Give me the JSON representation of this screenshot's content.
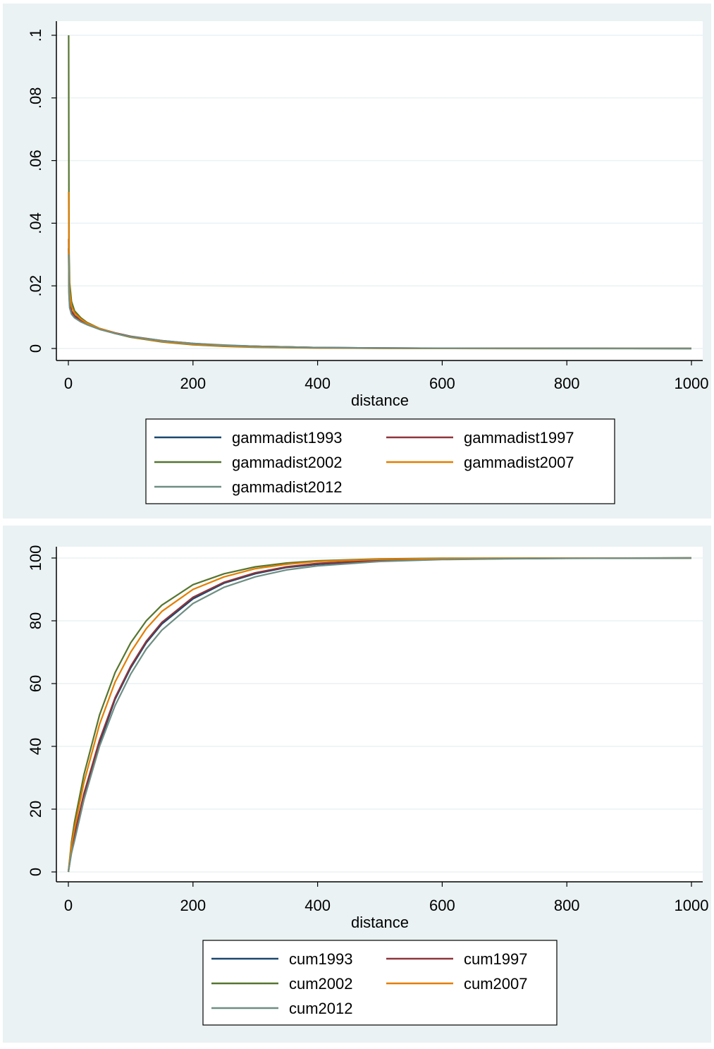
{
  "chart_data": [
    {
      "type": "line",
      "xlabel": "distance",
      "ylabel": "",
      "xlim": [
        0,
        1000
      ],
      "ylim": [
        0,
        0.1
      ],
      "xticks": [
        0,
        200,
        400,
        600,
        800,
        1000
      ],
      "xtick_labels": [
        "0",
        "200",
        "400",
        "600",
        "800",
        "1000"
      ],
      "yticks": [
        0,
        0.02,
        0.04,
        0.06,
        0.08,
        0.1
      ],
      "ytick_labels": [
        "0",
        ".02",
        ".04",
        ".06",
        ".08",
        ".1"
      ],
      "grid": "horizontal",
      "legend_position": "bottom",
      "x": [
        0.5,
        1,
        2,
        5,
        10,
        20,
        30,
        50,
        75,
        100,
        150,
        200,
        250,
        300,
        400,
        500,
        600,
        800,
        1000
      ],
      "series": [
        {
          "name": "gammadist1993",
          "color": "#1a476f",
          "values": [
            0.032,
            0.018,
            0.014,
            0.0115,
            0.0102,
            0.0088,
            0.0078,
            0.0062,
            0.0048,
            0.0038,
            0.0024,
            0.0015,
            0.001,
            0.0007,
            0.0003,
            0.00015,
            7e-05,
            2e-05,
            0.0
          ]
        },
        {
          "name": "gammadist1997",
          "color": "#90353b",
          "values": [
            0.035,
            0.02,
            0.015,
            0.012,
            0.0105,
            0.009,
            0.008,
            0.0064,
            0.005,
            0.0039,
            0.0025,
            0.0016,
            0.001,
            0.0007,
            0.0003,
            0.00015,
            7e-05,
            2e-05,
            0.0
          ]
        },
        {
          "name": "gammadist2002",
          "color": "#55752f",
          "values": [
            0.1,
            0.032,
            0.021,
            0.015,
            0.012,
            0.0098,
            0.0083,
            0.0064,
            0.0048,
            0.0036,
            0.0021,
            0.0012,
            0.0007,
            0.0004,
            0.00015,
            6e-05,
            2e-05,
            0.0,
            0.0
          ]
        },
        {
          "name": "gammadist2007",
          "color": "#e37e00",
          "values": [
            0.05,
            0.026,
            0.018,
            0.0135,
            0.0113,
            0.0094,
            0.0081,
            0.0064,
            0.0049,
            0.0037,
            0.0022,
            0.0013,
            0.0008,
            0.0005,
            0.0002,
            8e-05,
            3e-05,
            0.0,
            0.0
          ]
        },
        {
          "name": "gammadist2012",
          "color": "#6e8e84",
          "values": [
            0.03,
            0.017,
            0.013,
            0.011,
            0.0098,
            0.0085,
            0.0076,
            0.0061,
            0.0048,
            0.0038,
            0.0025,
            0.0016,
            0.0011,
            0.0007,
            0.0003,
            0.00016,
            8e-05,
            2e-05,
            0.0
          ]
        }
      ]
    },
    {
      "type": "line",
      "xlabel": "distance",
      "ylabel": "",
      "xlim": [
        0,
        1000
      ],
      "ylim": [
        0,
        100
      ],
      "xticks": [
        0,
        200,
        400,
        600,
        800,
        1000
      ],
      "xtick_labels": [
        "0",
        "200",
        "400",
        "600",
        "800",
        "1000"
      ],
      "yticks": [
        0,
        20,
        40,
        60,
        80,
        100
      ],
      "ytick_labels": [
        "0",
        "20",
        "40",
        "60",
        "80",
        "100"
      ],
      "grid": "horizontal",
      "legend_position": "bottom",
      "x": [
        0,
        5,
        10,
        25,
        50,
        75,
        100,
        125,
        150,
        200,
        250,
        300,
        350,
        400,
        500,
        600,
        700,
        800,
        1000
      ],
      "series": [
        {
          "name": "cum1993",
          "color": "#1a476f",
          "values": [
            0,
            6.5,
            11,
            24,
            41,
            55,
            65,
            73,
            79,
            87,
            92,
            95,
            97,
            98,
            99.2,
            99.6,
            99.8,
            99.9,
            100
          ]
        },
        {
          "name": "cum1997",
          "color": "#90353b",
          "values": [
            0,
            7,
            12,
            25,
            42,
            55.5,
            65.5,
            73.5,
            79.5,
            87.5,
            92.3,
            95.3,
            97.2,
            98.3,
            99.3,
            99.7,
            99.85,
            99.93,
            100
          ]
        },
        {
          "name": "cum2002",
          "color": "#55752f",
          "values": [
            0,
            9.5,
            16,
            31,
            50,
            63.5,
            73,
            80,
            85,
            91.5,
            95,
            97.2,
            98.4,
            99.1,
            99.7,
            99.9,
            99.95,
            99.98,
            100
          ]
        },
        {
          "name": "cum2007",
          "color": "#e37e00",
          "values": [
            0,
            8.5,
            14,
            28.5,
            47,
            60.5,
            70,
            77.5,
            83,
            90,
            94,
            96.6,
            98,
            98.9,
            99.6,
            99.85,
            99.93,
            99.97,
            100
          ]
        },
        {
          "name": "cum2012",
          "color": "#6e8e84",
          "values": [
            0,
            6,
            10,
            23,
            40,
            53,
            63,
            71,
            77,
            85.5,
            90.7,
            94,
            96.2,
            97.5,
            98.9,
            99.5,
            99.75,
            99.88,
            100
          ]
        }
      ]
    }
  ]
}
